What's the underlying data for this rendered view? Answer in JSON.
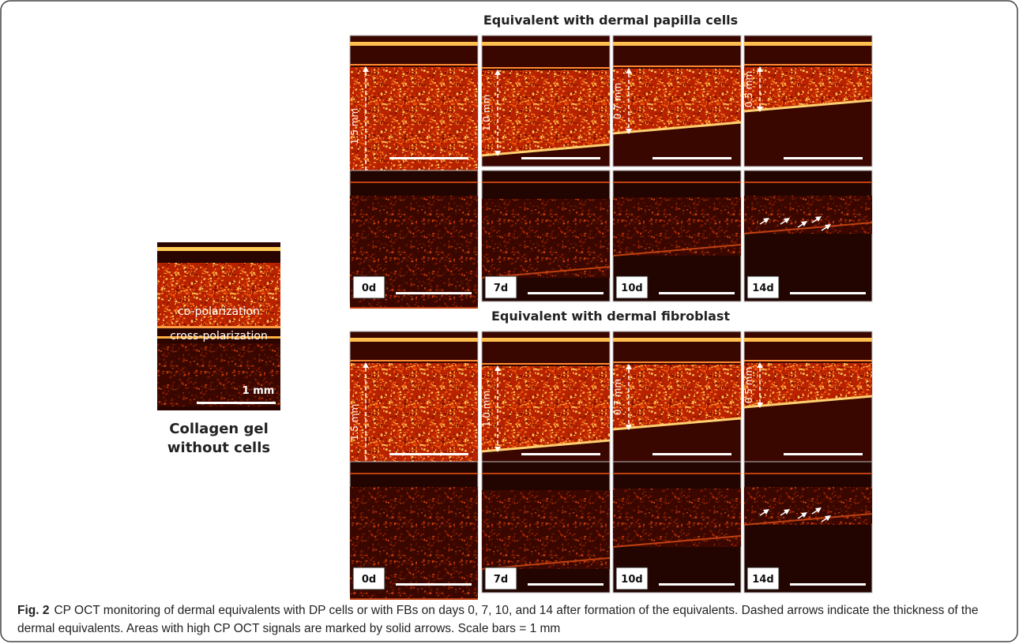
{
  "figure": {
    "left_panel": {
      "labels": [
        "co-polarization",
        "cross-polarization"
      ],
      "scale_label": "1 mm",
      "caption": [
        "Collagen gel",
        "without cells"
      ]
    },
    "groups": [
      {
        "title": "Equivalent with dermal papilla cells",
        "thickness_labels": [
          "1.5 mm",
          "1.0 mm",
          "0.7 mm",
          "0.5 mm"
        ],
        "day_labels": [
          "0d",
          "7d",
          "10d",
          "14d"
        ]
      },
      {
        "title": "Equivalent with dermal fibroblast",
        "thickness_labels": [
          "1.5 mm",
          "1.0 mm",
          "0.7 mm",
          "0.5 mm"
        ],
        "day_labels": [
          "0d",
          "7d",
          "10d",
          "14d"
        ]
      }
    ],
    "caption": {
      "label": "Fig. 2",
      "text": "CP OCT monitoring of dermal equivalents with DP cells or with FBs on days 0, 7, 10, and 14 after formation of the equivalents. Dashed arrows indicate the thickness of the dermal equivalents. Areas with high CP OCT signals are marked by solid arrows. Scale bars = 1 mm"
    }
  }
}
